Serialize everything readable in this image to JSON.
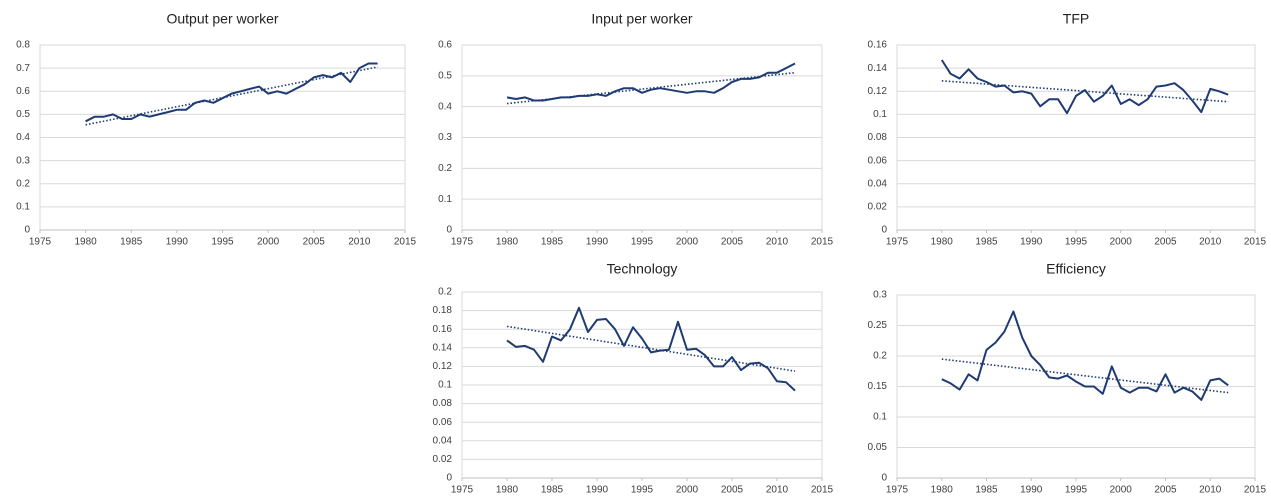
{
  "chart_data": [
    {
      "type": "line",
      "title": "Output per worker",
      "color": "#1f3b73",
      "grid": true,
      "x": [
        1980,
        1981,
        1982,
        1983,
        1984,
        1985,
        1986,
        1987,
        1988,
        1989,
        1990,
        1991,
        1992,
        1993,
        1994,
        1995,
        1996,
        1997,
        1998,
        1999,
        2000,
        2001,
        2002,
        2003,
        2004,
        2005,
        2006,
        2007,
        2008,
        2009,
        2010,
        2011,
        2012
      ],
      "values": [
        0.47,
        0.49,
        0.49,
        0.5,
        0.48,
        0.48,
        0.5,
        0.49,
        0.5,
        0.51,
        0.52,
        0.52,
        0.55,
        0.56,
        0.55,
        0.57,
        0.59,
        0.6,
        0.61,
        0.62,
        0.59,
        0.6,
        0.59,
        0.61,
        0.63,
        0.66,
        0.67,
        0.66,
        0.68,
        0.64,
        0.7,
        0.72,
        0.72
      ],
      "trendline": {
        "x": [
          1980,
          2012
        ],
        "values": [
          0.455,
          0.705
        ]
      },
      "xlim": [
        1975,
        2015
      ],
      "xticks": [
        1975,
        1980,
        1985,
        1990,
        1995,
        2000,
        2005,
        2010,
        2015
      ],
      "ylim": [
        0,
        0.8
      ],
      "yticks": [
        0,
        0.1,
        0.2,
        0.3,
        0.4,
        0.5,
        0.6,
        0.7,
        0.8
      ]
    },
    {
      "type": "line",
      "title": "Input per worker",
      "color": "#1f3b73",
      "grid": true,
      "x": [
        1980,
        1981,
        1982,
        1983,
        1984,
        1985,
        1986,
        1987,
        1988,
        1989,
        1990,
        1991,
        1992,
        1993,
        1994,
        1995,
        1996,
        1997,
        1998,
        1999,
        2000,
        2001,
        2002,
        2003,
        2004,
        2005,
        2006,
        2007,
        2008,
        2009,
        2010,
        2011,
        2012
      ],
      "values": [
        0.43,
        0.425,
        0.43,
        0.42,
        0.42,
        0.425,
        0.43,
        0.43,
        0.435,
        0.435,
        0.44,
        0.435,
        0.45,
        0.46,
        0.46,
        0.445,
        0.455,
        0.46,
        0.455,
        0.45,
        0.445,
        0.45,
        0.45,
        0.445,
        0.46,
        0.48,
        0.49,
        0.49,
        0.495,
        0.51,
        0.51,
        0.525,
        0.54
      ],
      "trendline": {
        "x": [
          1980,
          2012
        ],
        "values": [
          0.41,
          0.51
        ]
      },
      "xlim": [
        1975,
        2015
      ],
      "xticks": [
        1975,
        1980,
        1985,
        1990,
        1995,
        2000,
        2005,
        2010,
        2015
      ],
      "ylim": [
        0,
        0.6
      ],
      "yticks": [
        0,
        0.1,
        0.2,
        0.3,
        0.4,
        0.5,
        0.6
      ]
    },
    {
      "type": "line",
      "title": "TFP",
      "color": "#1f3b73",
      "grid": true,
      "x": [
        1980,
        1981,
        1982,
        1983,
        1984,
        1985,
        1986,
        1987,
        1988,
        1989,
        1990,
        1991,
        1992,
        1993,
        1994,
        1995,
        1996,
        1997,
        1998,
        1999,
        2000,
        2001,
        2002,
        2003,
        2004,
        2005,
        2006,
        2007,
        2008,
        2009,
        2010,
        2011,
        2012
      ],
      "values": [
        0.147,
        0.135,
        0.131,
        0.139,
        0.131,
        0.128,
        0.124,
        0.125,
        0.119,
        0.12,
        0.118,
        0.107,
        0.113,
        0.113,
        0.101,
        0.116,
        0.121,
        0.111,
        0.116,
        0.125,
        0.109,
        0.113,
        0.108,
        0.113,
        0.124,
        0.125,
        0.127,
        0.121,
        0.112,
        0.102,
        0.122,
        0.12,
        0.117
      ],
      "trendline": {
        "x": [
          1980,
          2012
        ],
        "values": [
          0.129,
          0.111
        ]
      },
      "xlim": [
        1975,
        2015
      ],
      "xticks": [
        1975,
        1980,
        1985,
        1990,
        1995,
        2000,
        2005,
        2010,
        2015
      ],
      "ylim": [
        0,
        0.16
      ],
      "yticks": [
        0,
        0.02,
        0.04,
        0.06,
        0.08,
        0.1,
        0.12,
        0.14,
        0.16
      ]
    },
    {
      "type": "line",
      "title": "Technology",
      "color": "#1f3b73",
      "grid": true,
      "x": [
        1980,
        1981,
        1982,
        1983,
        1984,
        1985,
        1986,
        1987,
        1988,
        1989,
        1990,
        1991,
        1992,
        1993,
        1994,
        1995,
        1996,
        1997,
        1998,
        1999,
        2000,
        2001,
        2002,
        2003,
        2004,
        2005,
        2006,
        2007,
        2008,
        2009,
        2010,
        2011,
        2012
      ],
      "values": [
        0.148,
        0.141,
        0.142,
        0.138,
        0.125,
        0.152,
        0.148,
        0.16,
        0.183,
        0.157,
        0.17,
        0.171,
        0.16,
        0.142,
        0.162,
        0.15,
        0.135,
        0.137,
        0.138,
        0.168,
        0.138,
        0.139,
        0.132,
        0.12,
        0.12,
        0.13,
        0.116,
        0.123,
        0.124,
        0.118,
        0.104,
        0.103,
        0.094
      ],
      "trendline": {
        "x": [
          1980,
          2012
        ],
        "values": [
          0.163,
          0.115
        ]
      },
      "xlim": [
        1975,
        2015
      ],
      "xticks": [
        1975,
        1980,
        1985,
        1990,
        1995,
        2000,
        2005,
        2010,
        2015
      ],
      "ylim": [
        0,
        0.2
      ],
      "yticks": [
        0,
        0.02,
        0.04,
        0.06,
        0.08,
        0.1,
        0.12,
        0.14,
        0.16,
        0.18,
        0.2
      ]
    },
    {
      "type": "line",
      "title": "Efficiency",
      "color": "#1f3b73",
      "grid": true,
      "x": [
        1980,
        1981,
        1982,
        1983,
        1984,
        1985,
        1986,
        1987,
        1988,
        1989,
        1990,
        1991,
        1992,
        1993,
        1994,
        1995,
        1996,
        1997,
        1998,
        1999,
        2000,
        2001,
        2002,
        2003,
        2004,
        2005,
        2006,
        2007,
        2008,
        2009,
        2010,
        2011,
        2012
      ],
      "values": [
        0.162,
        0.155,
        0.145,
        0.17,
        0.16,
        0.21,
        0.222,
        0.24,
        0.273,
        0.23,
        0.2,
        0.185,
        0.165,
        0.163,
        0.168,
        0.158,
        0.15,
        0.15,
        0.138,
        0.183,
        0.148,
        0.14,
        0.148,
        0.148,
        0.142,
        0.17,
        0.14,
        0.148,
        0.142,
        0.128,
        0.16,
        0.163,
        0.152
      ],
      "trendline": {
        "x": [
          1980,
          2012
        ],
        "values": [
          0.195,
          0.14
        ]
      },
      "xlim": [
        1975,
        2015
      ],
      "xticks": [
        1975,
        1980,
        1985,
        1990,
        1995,
        2000,
        2005,
        2010,
        2015
      ],
      "ylim": [
        0,
        0.3
      ],
      "yticks": [
        0,
        0.05,
        0.1,
        0.15,
        0.2,
        0.25,
        0.3
      ]
    }
  ]
}
